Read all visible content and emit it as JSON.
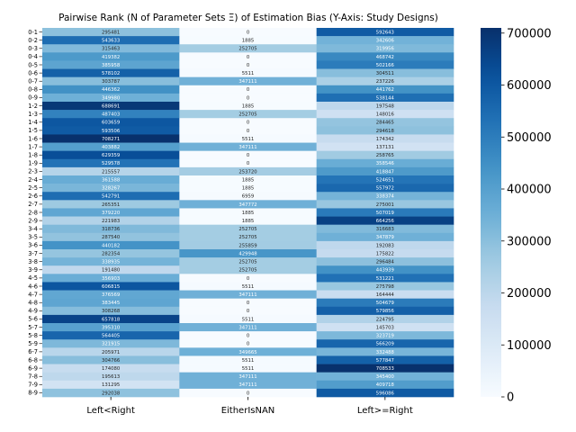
{
  "chart_data": {
    "type": "heatmap",
    "title": "Pairwise Rank (N of Parameter Sets Ξ) of Estimation Bias (Y-Axis: Study Designs)",
    "xlabel": "",
    "ylabel": "",
    "columns": [
      "Left<Right",
      "EitherIsNAN",
      "Left>=Right"
    ],
    "rows": [
      "0-1",
      "0-2",
      "0-3",
      "0-4",
      "0-5",
      "0-6",
      "0-7",
      "0-8",
      "0-9",
      "1-2",
      "1-3",
      "1-4",
      "1-5",
      "1-6",
      "1-7",
      "1-8",
      "1-9",
      "2-3",
      "2-4",
      "2-5",
      "2-6",
      "2-7",
      "2-8",
      "2-9",
      "3-4",
      "3-5",
      "3-6",
      "3-7",
      "3-8",
      "3-9",
      "4-5",
      "4-6",
      "4-7",
      "4-8",
      "4-9",
      "5-6",
      "5-7",
      "5-8",
      "5-9",
      "6-7",
      "6-8",
      "6-9",
      "7-8",
      "7-9",
      "8-9"
    ],
    "values": [
      [
        295481,
        0,
        592643
      ],
      [
        543633,
        1885,
        342606
      ],
      [
        315463,
        252705,
        319956
      ],
      [
        419382,
        0,
        468742
      ],
      [
        385958,
        0,
        502166
      ],
      [
        578102,
        5511,
        304511
      ],
      [
        303787,
        347111,
        237226
      ],
      [
        446362,
        0,
        441762
      ],
      [
        349980,
        0,
        538144
      ],
      [
        688691,
        1885,
        197548
      ],
      [
        487403,
        252705,
        148016
      ],
      [
        603659,
        0,
        284465
      ],
      [
        593506,
        0,
        294618
      ],
      [
        708271,
        5511,
        174342
      ],
      [
        403882,
        347111,
        137131
      ],
      [
        629359,
        0,
        258765
      ],
      [
        529578,
        0,
        358546
      ],
      [
        215557,
        253720,
        418847
      ],
      [
        361588,
        1885,
        524651
      ],
      [
        328267,
        1885,
        557972
      ],
      [
        542791,
        6959,
        338374
      ],
      [
        265351,
        347772,
        275001
      ],
      [
        379220,
        1885,
        507019
      ],
      [
        221983,
        1885,
        664256
      ],
      [
        318736,
        252705,
        316683
      ],
      [
        287540,
        252705,
        347879
      ],
      [
        440182,
        255859,
        192083
      ],
      [
        282354,
        429948,
        175822
      ],
      [
        338935,
        252705,
        296484
      ],
      [
        191480,
        252705,
        443939
      ],
      [
        356903,
        0,
        531221
      ],
      [
        606815,
        5511,
        275798
      ],
      [
        376569,
        347111,
        164444
      ],
      [
        383445,
        0,
        504679
      ],
      [
        308268,
        0,
        579856
      ],
      [
        657818,
        5511,
        224795
      ],
      [
        395310,
        347111,
        145703
      ],
      [
        564405,
        0,
        323719
      ],
      [
        321915,
        0,
        566209
      ],
      [
        205971,
        349665,
        332488
      ],
      [
        304766,
        5511,
        577847
      ],
      [
        174080,
        5511,
        708533
      ],
      [
        195613,
        347111,
        345400
      ],
      [
        131295,
        347111,
        409718
      ],
      [
        292038,
        0,
        596086
      ]
    ],
    "vmin": 0,
    "vmax": 710000,
    "colorscale": "Blues",
    "colorbar_ticks": [
      0,
      100000,
      200000,
      300000,
      400000,
      500000,
      600000,
      700000
    ],
    "colorbar_tick_labels": [
      "0",
      "100000",
      "200000",
      "300000",
      "400000",
      "500000",
      "600000",
      "700000"
    ],
    "colors": {
      "low": "#f7fbff",
      "high": "#08306b",
      "text_dark": "#262626",
      "text_light": "#ffffff"
    }
  }
}
